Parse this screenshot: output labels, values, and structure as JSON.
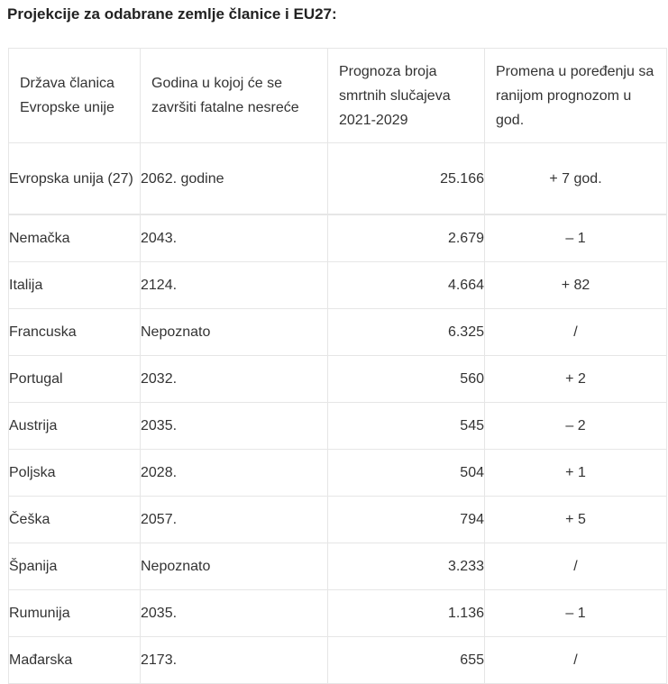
{
  "title": "Projekcije za odabrane zemlje članice i EU27:",
  "table": {
    "headers": [
      "Država članica Evropske unije",
      "Godina u kojoj će se završiti fatalne nesreće",
      "Prognoza broja smrtnih slučajeva 2021-2029",
      "Promena u poređenju sa ranijom prognozom u god."
    ],
    "rows": [
      {
        "country": "Evropska unija (27)",
        "year": "2062. godine",
        "forecast": "25.166",
        "change": "+ 7 god."
      },
      {
        "country": "Nemačka",
        "year": "2043.",
        "forecast": "2.679",
        "change": "–  1"
      },
      {
        "country": "Italija",
        "year": "2124.",
        "forecast": "4.664",
        "change": "+ 82"
      },
      {
        "country": "Francuska",
        "year": "Nepoznato",
        "forecast": "6.325",
        "change": "/"
      },
      {
        "country": "Portugal",
        "year": "2032.",
        "forecast": "560",
        "change": "+ 2"
      },
      {
        "country": "Austrija",
        "year": "2035.",
        "forecast": "545",
        "change": "–  2"
      },
      {
        "country": "Poljska",
        "year": "2028.",
        "forecast": "504",
        "change": "+ 1"
      },
      {
        "country": "Češka",
        "year": "2057.",
        "forecast": "794",
        "change": "+ 5"
      },
      {
        "country": "Španija",
        "year": "Nepoznato",
        "forecast": "3.233",
        "change": "/"
      },
      {
        "country": "Rumunija",
        "year": "2035.",
        "forecast": "1.136",
        "change": "– 1"
      },
      {
        "country": "Mađarska",
        "year": "2173.",
        "forecast": "655",
        "change": "/"
      }
    ]
  }
}
